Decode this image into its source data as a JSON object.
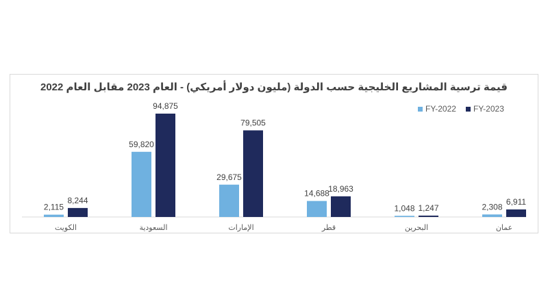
{
  "chart_data": {
    "type": "bar",
    "title": "قيمة ترسية المشاريع الخليجية حسب الدولة (مليون دولار أمريكي) - العام 2023 مقابل العام 2022",
    "categories": [
      "الكويت",
      "السعودية",
      "الإمارات",
      "قطر",
      "البحرين",
      "عمان"
    ],
    "series": [
      {
        "name": "FY-2022",
        "color": "#6fb1e0",
        "values": [
          2115,
          59820,
          29675,
          14688,
          1048,
          2308
        ]
      },
      {
        "name": "FY-2023",
        "color": "#1f2a5c",
        "values": [
          8244,
          94875,
          79505,
          18963,
          1247,
          6911
        ]
      }
    ],
    "value_labels": {
      "FY-2022": [
        "2,115",
        "59,820",
        "29,675",
        "14,688",
        "1,048",
        "2,308"
      ],
      "FY-2023": [
        "8,244",
        "94,875",
        "79,505",
        "18,963",
        "1,247",
        "6,911"
      ]
    },
    "ylim": [
      0,
      100000
    ],
    "grid": false,
    "legend_position": "top-right"
  }
}
